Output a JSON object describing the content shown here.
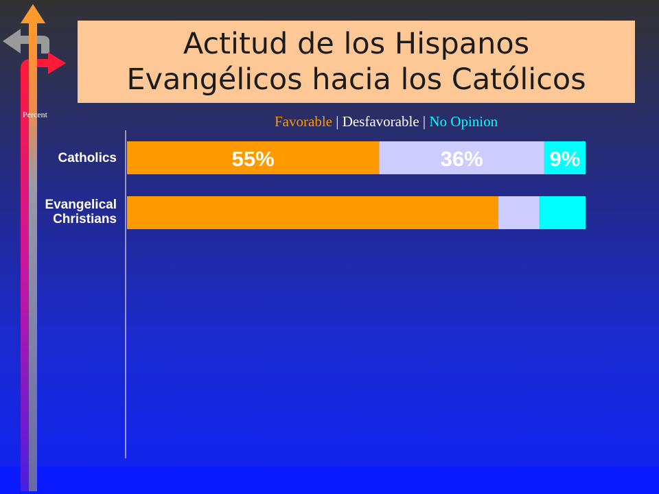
{
  "slide": {
    "title_line1": "Actitud de los Hispanos",
    "title_line2": "Evangélicos hacia los Católicos",
    "axis_label": "Percent"
  },
  "legend": {
    "favorable": "Favorable",
    "desfavorable": "Desfavorable",
    "no_opinion": "No Opinion",
    "separator": "|"
  },
  "colors": {
    "favorable": "#ff9900",
    "desfavorable": "#ccccff",
    "no_opinion": "#00ffff",
    "title_bg": "#fdc895"
  },
  "chart_data": {
    "type": "bar",
    "orientation": "horizontal",
    "stacked": true,
    "categories": [
      "Catholics",
      "Evangelical\nChristians"
    ],
    "series": [
      {
        "name": "Favorable",
        "values": [
          55,
          81
        ],
        "labels": [
          "55%",
          ""
        ]
      },
      {
        "name": "Desfavorable",
        "values": [
          36,
          9
        ],
        "labels": [
          "36%",
          ""
        ]
      },
      {
        "name": "No Opinion",
        "values": [
          9,
          10
        ],
        "labels": [
          "9%",
          ""
        ]
      }
    ],
    "xlim": [
      0,
      100
    ],
    "ylabel": "Percent",
    "legend_position": "top"
  }
}
